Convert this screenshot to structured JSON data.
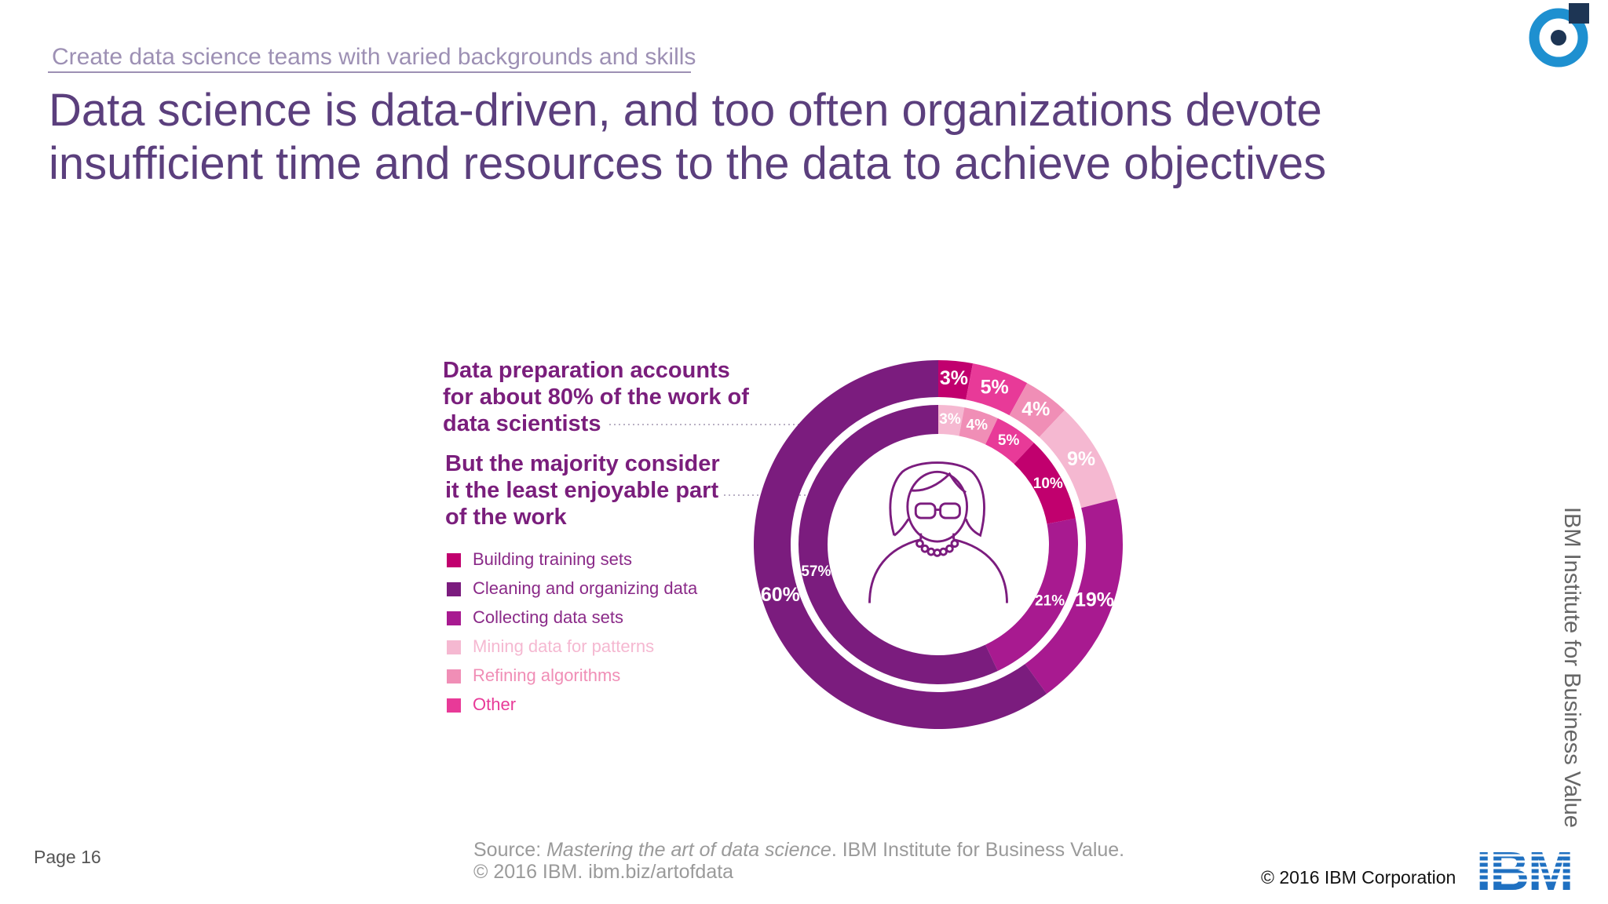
{
  "header": {
    "subtitle": "Create data science teams with varied backgrounds and skills",
    "title": [
      "Data science is data-driven, and too often organizations devote",
      "insufficient time and resources to the data to achieve objectives"
    ]
  },
  "chart_data": {
    "type": "donut",
    "categories": [
      "Building training sets",
      "Cleaning and organizing data",
      "Collecting data sets",
      "Mining data for patterns",
      "Refining algorithms",
      "Other"
    ],
    "colors": [
      "#c1006e",
      "#7b1c7e",
      "#a81a90",
      "#f5b8d1",
      "#f08eb6",
      "#e83a98"
    ],
    "series": [
      {
        "values": [
          3,
          60,
          19,
          9,
          4,
          5
        ],
        "value_labels": [
          "3%",
          "60%",
          "19%",
          "9%",
          "4%",
          "5%"
        ]
      },
      {
        "values": [
          10,
          57,
          21,
          3,
          4,
          5
        ],
        "value_labels": [
          "10%",
          "57%",
          "21%",
          "3%",
          "4%",
          "5%"
        ]
      }
    ],
    "annotations": [
      [
        "Data preparation accounts",
        "for about 80% of the work of",
        "data scientists"
      ],
      [
        "But the majority consider",
        "it the least enjoyable part",
        "of the work"
      ]
    ]
  },
  "footer": {
    "page": "Page 16",
    "source_prefix": "Source: ",
    "source_title": "Mastering the art of data science",
    "source_suffix": ". IBM Institute for Business Value.",
    "source_line2": "© 2016 IBM. ibm.biz/artofdata",
    "copyright": "© 2016 IBM Corporation",
    "side_label": "IBM Institute for Business Value",
    "logo": "IBM"
  }
}
